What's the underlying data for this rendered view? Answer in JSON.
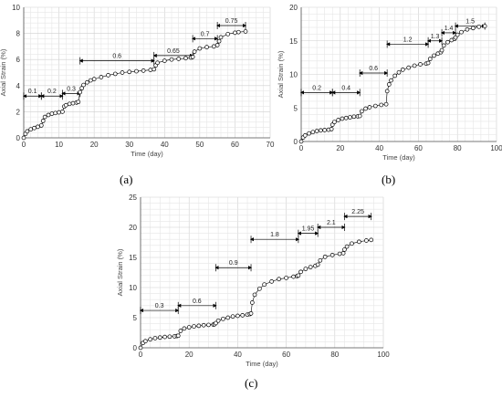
{
  "chart_data": [
    {
      "type": "scatter",
      "panel": "(a)",
      "xlabel": "Time (day)",
      "ylabel": "Axial Strain (%)",
      "xlim": [
        0,
        70
      ],
      "ylim": [
        0,
        10
      ],
      "xticks": [
        0,
        10,
        20,
        30,
        40,
        50,
        60,
        70
      ],
      "yticks": [
        0,
        2,
        4,
        6,
        8,
        10
      ],
      "grid": true,
      "stages": [
        {
          "label": "0.1",
          "x0": 0,
          "x1": 5,
          "y": 3.2
        },
        {
          "label": "0.2",
          "x0": 5,
          "x1": 11,
          "y": 3.2
        },
        {
          "label": "0.3",
          "x0": 11,
          "x1": 16,
          "y": 3.4
        },
        {
          "label": "0.6",
          "x0": 16,
          "x1": 37,
          "y": 5.9
        },
        {
          "label": "0.65",
          "x0": 37,
          "x1": 48,
          "y": 6.3
        },
        {
          "label": "0.7",
          "x0": 48,
          "x1": 55,
          "y": 7.6
        },
        {
          "label": "0.75",
          "x0": 55,
          "x1": 63,
          "y": 8.6
        }
      ],
      "x": [
        0,
        0.5,
        1,
        2,
        3,
        4,
        5,
        5.5,
        6,
        7,
        8,
        9,
        10,
        11,
        11.5,
        12,
        13,
        14,
        15,
        15.5,
        16,
        16.5,
        17,
        18,
        19,
        20,
        22,
        24,
        26,
        28,
        30,
        32,
        34,
        36,
        37,
        37.5,
        38,
        40,
        42,
        44,
        46,
        47.5,
        48,
        48.5,
        50,
        52,
        54,
        55,
        55.5,
        56,
        58,
        60,
        61,
        63
      ],
      "y": [
        0,
        0.3,
        0.5,
        0.65,
        0.75,
        0.85,
        0.95,
        1.3,
        1.6,
        1.75,
        1.85,
        1.9,
        1.95,
        2.0,
        2.4,
        2.5,
        2.6,
        2.65,
        2.7,
        2.75,
        3.5,
        3.8,
        4.05,
        4.25,
        4.4,
        4.5,
        4.65,
        4.8,
        4.9,
        5.0,
        5.05,
        5.1,
        5.15,
        5.2,
        5.25,
        5.55,
        5.75,
        5.9,
        6.0,
        6.05,
        6.1,
        6.15,
        6.2,
        6.6,
        6.85,
        6.95,
        7.0,
        7.1,
        7.4,
        7.7,
        7.95,
        8.05,
        8.1,
        8.15
      ]
    },
    {
      "type": "scatter",
      "panel": "(b)",
      "xlabel": "Time (day)",
      "ylabel": "Axial Strain (%)",
      "xlim": [
        0,
        100
      ],
      "ylim": [
        0,
        20
      ],
      "xticks": [
        0,
        20,
        40,
        60,
        80,
        100
      ],
      "yticks": [
        0,
        5,
        10,
        15,
        20
      ],
      "grid": true,
      "stages": [
        {
          "label": "0.2",
          "x0": 0,
          "x1": 16,
          "y": 7.3
        },
        {
          "label": "0.4",
          "x0": 16,
          "x1": 30,
          "y": 7.3
        },
        {
          "label": "0.6",
          "x0": 30,
          "x1": 44,
          "y": 10.2
        },
        {
          "label": "1.2",
          "x0": 44,
          "x1": 65,
          "y": 14.5
        },
        {
          "label": "1.3",
          "x0": 65,
          "x1": 72,
          "y": 15.0
        },
        {
          "label": "1.4",
          "x0": 72,
          "x1": 79,
          "y": 16.2
        },
        {
          "label": "1.5",
          "x0": 79,
          "x1": 94,
          "y": 17.2
        }
      ],
      "x": [
        0,
        1,
        2,
        4,
        6,
        8,
        10,
        12,
        14,
        15.5,
        16,
        17,
        19,
        21,
        23,
        25,
        27,
        29,
        30,
        31,
        33,
        35,
        38,
        41,
        43.5,
        44,
        45,
        46,
        48,
        50,
        52,
        55,
        58,
        61,
        64,
        65,
        66,
        68,
        70,
        71.5,
        72,
        73,
        75,
        77,
        78.5,
        79,
        80,
        82,
        85,
        88,
        91,
        94
      ],
      "y": [
        0,
        0.6,
        0.9,
        1.2,
        1.4,
        1.55,
        1.65,
        1.7,
        1.75,
        1.85,
        2.5,
        2.9,
        3.2,
        3.4,
        3.5,
        3.6,
        3.7,
        3.75,
        3.8,
        4.5,
        4.9,
        5.1,
        5.3,
        5.45,
        5.55,
        7.5,
        8.5,
        9.1,
        9.8,
        10.3,
        10.7,
        11.0,
        11.3,
        11.5,
        11.6,
        11.7,
        12.3,
        12.8,
        13.1,
        13.3,
        13.6,
        14.3,
        14.8,
        15.1,
        15.3,
        15.5,
        15.9,
        16.3,
        16.7,
        16.9,
        17.1,
        17.2
      ]
    },
    {
      "type": "scatter",
      "panel": "(c)",
      "xlabel": "Time (day)",
      "ylabel": "Axial Strain (%)",
      "xlim": [
        0,
        100
      ],
      "ylim": [
        0,
        25
      ],
      "xticks": [
        0,
        20,
        40,
        60,
        80,
        100
      ],
      "yticks": [
        0,
        5,
        10,
        15,
        20,
        25
      ],
      "grid": true,
      "stages": [
        {
          "label": "0.3",
          "x0": 0,
          "x1": 15.5,
          "y": 6.2
        },
        {
          "label": "0.6",
          "x0": 15.5,
          "x1": 31,
          "y": 7.0
        },
        {
          "label": "0.9",
          "x0": 31,
          "x1": 45.5,
          "y": 13.3
        },
        {
          "label": "1.8",
          "x0": 45.5,
          "x1": 65,
          "y": 18.0
        },
        {
          "label": "1.95",
          "x0": 65,
          "x1": 73,
          "y": 19.0
        },
        {
          "label": "2.1",
          "x0": 73,
          "x1": 84,
          "y": 20.0
        },
        {
          "label": "2.25",
          "x0": 84,
          "x1": 95,
          "y": 21.8
        }
      ],
      "x": [
        0,
        1,
        2,
        4,
        6,
        8,
        10,
        12,
        14,
        15,
        15.5,
        16.5,
        18,
        20,
        22,
        24,
        26,
        28,
        30,
        30.5,
        31,
        32,
        34,
        36,
        38,
        40,
        42,
        44,
        45,
        45.5,
        46,
        47,
        49,
        51,
        54,
        57,
        60,
        63,
        64.5,
        65,
        66,
        68,
        70,
        72,
        73,
        74,
        76,
        79,
        82,
        83.5,
        84,
        85,
        87,
        90,
        93,
        95
      ],
      "y": [
        0,
        0.8,
        1.1,
        1.4,
        1.6,
        1.7,
        1.8,
        1.85,
        1.9,
        1.95,
        2.0,
        2.8,
        3.2,
        3.4,
        3.55,
        3.65,
        3.75,
        3.8,
        3.85,
        3.9,
        4.1,
        4.5,
        4.8,
        5.0,
        5.2,
        5.3,
        5.4,
        5.5,
        5.6,
        5.7,
        7.5,
        8.8,
        9.8,
        10.5,
        11.0,
        11.4,
        11.6,
        11.8,
        11.9,
        12.0,
        12.6,
        13.1,
        13.4,
        13.6,
        13.8,
        14.5,
        15.1,
        15.4,
        15.6,
        15.7,
        16.3,
        16.8,
        17.3,
        17.6,
        17.8,
        17.9
      ]
    }
  ]
}
